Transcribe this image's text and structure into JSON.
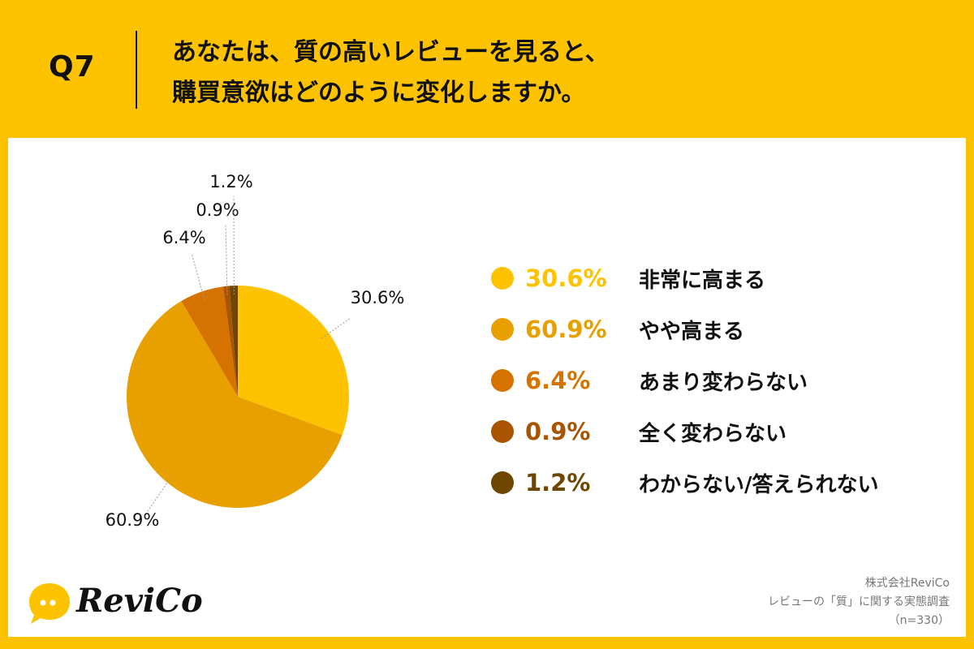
{
  "header": {
    "qnum": "Q7",
    "title_line1": "あなたは、質の高いレビューを見ると、",
    "title_line2": "購買意欲はどのように変化しますか。"
  },
  "chart_data": {
    "type": "pie",
    "slices": [
      {
        "label": "非常に高まる",
        "value": 30.6,
        "display": "30.6%",
        "color": "#FDC300"
      },
      {
        "label": "やや高まる",
        "value": 60.9,
        "display": "60.9%",
        "color": "#E8A000"
      },
      {
        "label": "あまり変わらない",
        "value": 6.4,
        "display": "6.4%",
        "color": "#D67300"
      },
      {
        "label": "全く変わらない",
        "value": 0.9,
        "display": "0.9%",
        "color": "#A95400"
      },
      {
        "label": "わからない/答えられない",
        "value": 1.2,
        "display": "1.2%",
        "color": "#6E4600"
      }
    ],
    "start": "12 o'clock",
    "direction": "clockwise",
    "legend_placement": "right"
  },
  "logo": {
    "text": "ReviCo"
  },
  "source": {
    "company": "株式会社ReviCo",
    "survey": "レビューの「質」に関する実態調査",
    "sample": "（n=330）"
  }
}
